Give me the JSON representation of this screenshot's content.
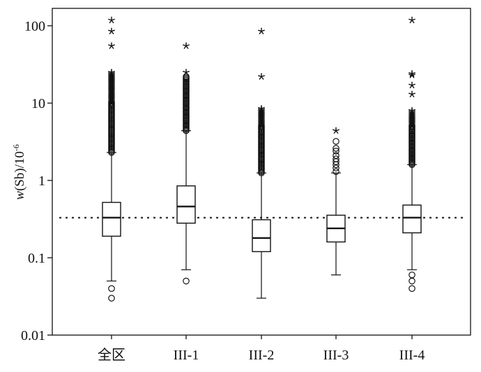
{
  "chart_data": {
    "type": "box",
    "title": "",
    "xlabel": "",
    "ylabel": "w(Sb)/10-6",
    "ylabel_parts": {
      "italic": "w",
      "rest": "(Sb)/10",
      "sup": "-6"
    },
    "yscale": "log",
    "ylim": [
      0.01,
      170
    ],
    "yticks": [
      {
        "value": 0.01,
        "label": "0.01"
      },
      {
        "value": 0.1,
        "label": "0.1"
      },
      {
        "value": 1,
        "label": "1"
      },
      {
        "value": 10,
        "label": "10"
      },
      {
        "value": 100,
        "label": "100"
      }
    ],
    "reference_line": {
      "value": 0.33,
      "style": "dotted"
    },
    "categories": [
      "全区",
      "III-1",
      "III-2",
      "III-3",
      "III-4"
    ],
    "boxes": [
      {
        "name": "全区",
        "whisker_low": 0.05,
        "q1": 0.19,
        "median": 0.33,
        "q3": 0.52,
        "whisker_high": 2.3,
        "low_outliers": [
          0.04,
          0.03
        ],
        "dense_circles": [
          2.3,
          10
        ],
        "dense_stars": [
          10,
          25
        ],
        "extreme_stars": [
          55,
          85,
          118
        ]
      },
      {
        "name": "III-1",
        "whisker_low": 0.07,
        "q1": 0.28,
        "median": 0.46,
        "q3": 0.85,
        "whisker_high": 4.4,
        "low_outliers": [
          0.05
        ],
        "dense_circles": [
          4.4,
          22
        ],
        "dense_stars": [],
        "extreme_stars": [
          25,
          55
        ]
      },
      {
        "name": "III-2",
        "whisker_low": 0.03,
        "q1": 0.12,
        "median": 0.18,
        "q3": 0.31,
        "whisker_high": 1.25,
        "low_outliers": [],
        "dense_circles": [
          1.25,
          5
        ],
        "dense_stars": [
          5,
          8.5
        ],
        "extreme_stars": [
          22,
          85
        ]
      },
      {
        "name": "III-3",
        "whisker_low": 0.06,
        "q1": 0.16,
        "median": 0.24,
        "q3": 0.355,
        "whisker_high": 1.25,
        "low_outliers": [],
        "circles": [
          1.3,
          1.45,
          1.6,
          1.75,
          1.9,
          2.1,
          2.4,
          2.6,
          3.2
        ],
        "extreme_stars": [
          4.4
        ]
      },
      {
        "name": "III-4",
        "whisker_low": 0.07,
        "q1": 0.21,
        "median": 0.33,
        "q3": 0.48,
        "whisker_high": 1.6,
        "low_outliers": [
          0.06,
          0.05,
          0.04
        ],
        "dense_circles": [
          1.6,
          5
        ],
        "dense_stars": [
          5,
          8
        ],
        "extreme_stars": [
          13,
          17,
          23,
          24,
          118
        ]
      }
    ]
  }
}
